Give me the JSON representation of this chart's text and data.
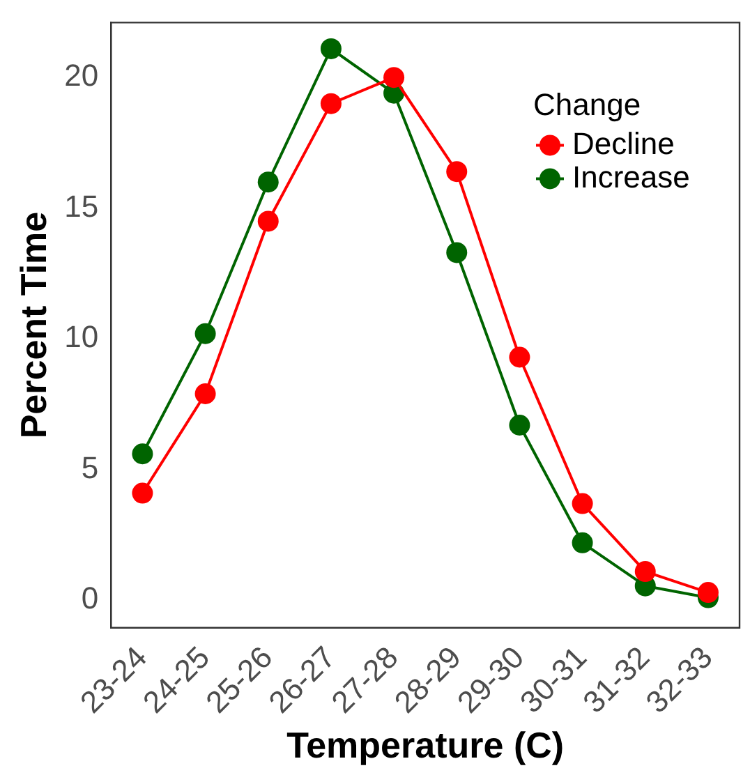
{
  "chart_data": {
    "type": "line",
    "xlabel": "Temperature (C)",
    "ylabel": "Percent Time",
    "legend_title": "Change",
    "legend": "top right",
    "marker": "circle",
    "grid": false,
    "categories": [
      "23-24",
      "24-25",
      "25-26",
      "26-27",
      "27-28",
      "28-29",
      "29-30",
      "30-31",
      "31-32",
      "32-33"
    ],
    "ylim": [
      -1.05,
      22.1
    ],
    "yticks": [
      0,
      5,
      10,
      15,
      20
    ],
    "series": [
      {
        "name": "Decline",
        "color": "#ff0000",
        "values": [
          4.1,
          7.9,
          14.5,
          19.0,
          20.0,
          16.4,
          9.3,
          3.7,
          1.1,
          0.3
        ]
      },
      {
        "name": "Increase",
        "color": "#006400",
        "values": [
          5.6,
          10.2,
          16.0,
          21.1,
          19.4,
          13.3,
          6.7,
          2.2,
          0.55,
          0.1
        ]
      }
    ]
  }
}
